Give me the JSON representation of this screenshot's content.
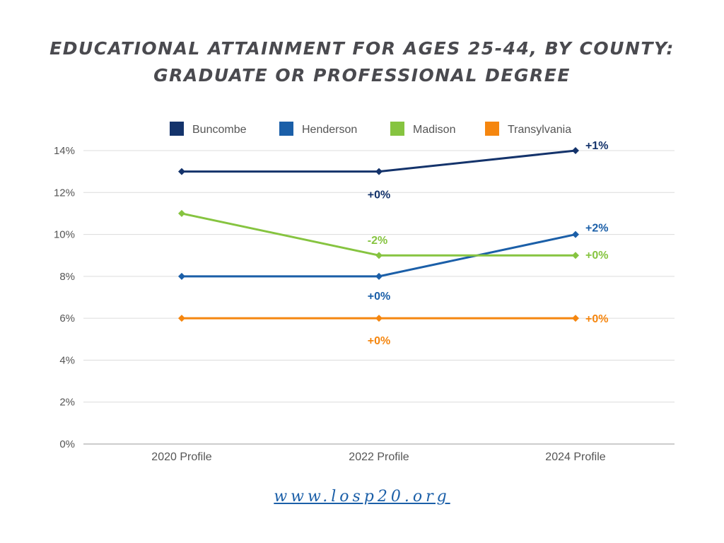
{
  "title": {
    "line1": "EDUCATIONAL ATTAINMENT FOR AGES 25-44, BY COUNTY:",
    "line2": "GRADUATE OR PROFESSIONAL DEGREE"
  },
  "footer": {
    "url": "www.losp20.org"
  },
  "chart_data": {
    "type": "line",
    "categories": [
      "2020 Profile",
      "2022 Profile",
      "2024 Profile"
    ],
    "ylim": [
      0,
      14
    ],
    "yticks": [
      0,
      2,
      4,
      6,
      8,
      10,
      12,
      14
    ],
    "y_unit": "%",
    "grid": true,
    "legend_placement": "top",
    "series": [
      {
        "name": "Buncombe",
        "color": "#14336b",
        "values": [
          13,
          13,
          14
        ],
        "labels": [
          null,
          "+0%",
          "+1%"
        ]
      },
      {
        "name": "Henderson",
        "color": "#1b5fa8",
        "values": [
          8,
          8,
          10
        ],
        "labels": [
          null,
          "+0%",
          "+2%"
        ]
      },
      {
        "name": "Madison",
        "color": "#86c440",
        "values": [
          11,
          9,
          9
        ],
        "labels": [
          null,
          "-2%",
          "+0%"
        ]
      },
      {
        "name": "Transylvania",
        "color": "#f5860f",
        "values": [
          6,
          6,
          6
        ],
        "labels": [
          null,
          "+0%",
          "+0%"
        ]
      }
    ]
  }
}
